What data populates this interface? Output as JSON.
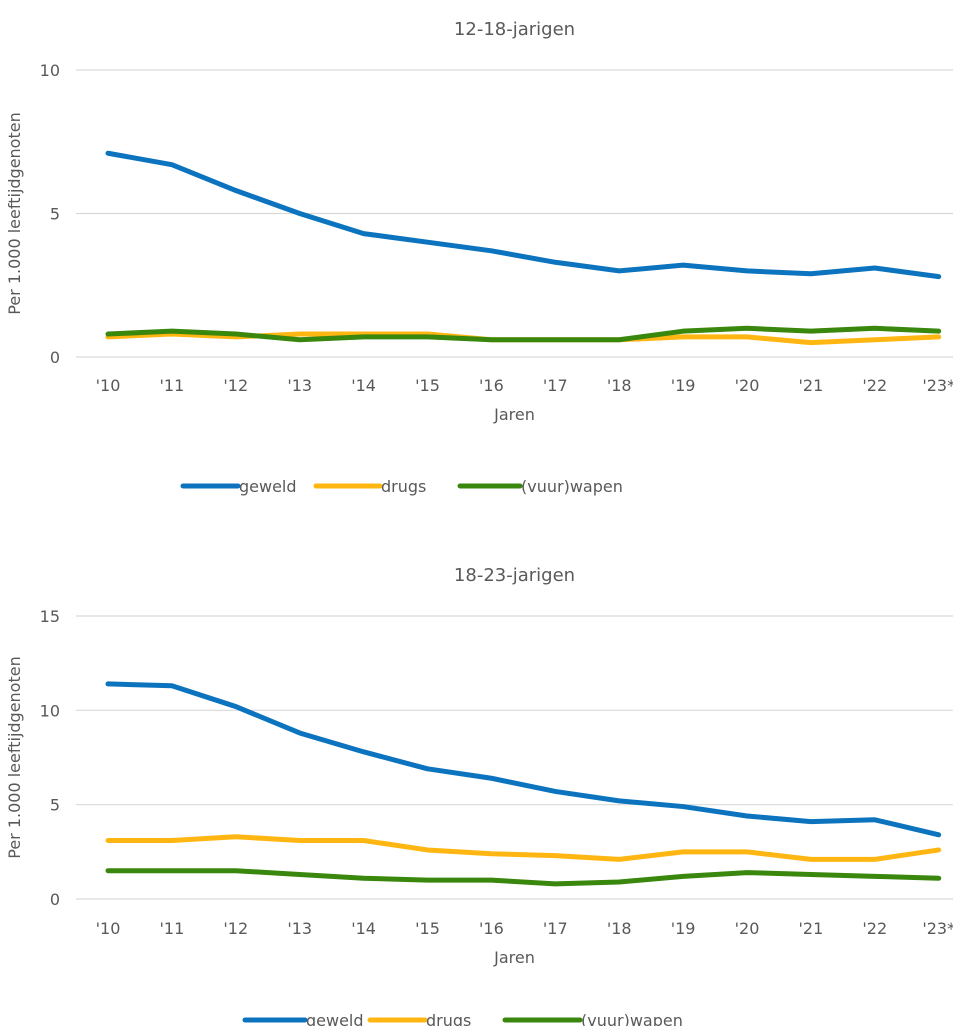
{
  "chart_data": [
    {
      "type": "line",
      "title": "12-18-jarigen",
      "xlabel": "Jaren",
      "ylabel": "Per 1.000 leeftijdgenoten",
      "ylim": [
        0,
        10
      ],
      "yticks": [
        "0",
        "5",
        "10"
      ],
      "categories": [
        "'10",
        "'11",
        "'12",
        "'13",
        "'14",
        "'15",
        "'16",
        "'17",
        "'18",
        "'19",
        "'20",
        "'21",
        "'22",
        "'23*"
      ],
      "grid": true,
      "legend_position": "bottom",
      "series": [
        {
          "name": "geweld",
          "color": "#0c73be",
          "values": [
            7.1,
            6.7,
            5.8,
            5.0,
            4.3,
            4.0,
            3.7,
            3.3,
            3.0,
            3.2,
            3.0,
            2.9,
            3.1,
            2.8
          ]
        },
        {
          "name": "drugs",
          "color": "#ffb612",
          "values": [
            0.7,
            0.8,
            0.7,
            0.8,
            0.8,
            0.8,
            0.6,
            0.6,
            0.6,
            0.7,
            0.7,
            0.5,
            0.6,
            0.7
          ]
        },
        {
          "name": "(vuur)wapen",
          "color": "#39870c",
          "values": [
            0.8,
            0.9,
            0.8,
            0.6,
            0.7,
            0.7,
            0.6,
            0.6,
            0.6,
            0.9,
            1.0,
            0.9,
            1.0,
            0.9
          ]
        }
      ]
    },
    {
      "type": "line",
      "title": "18-23-jarigen",
      "xlabel": "Jaren",
      "ylabel": "Per 1.000 leeftijdgenoten",
      "ylim": [
        0,
        15
      ],
      "yticks": [
        "0",
        "5",
        "10",
        "15"
      ],
      "categories": [
        "'10",
        "'11",
        "'12",
        "'13",
        "'14",
        "'15",
        "'16",
        "'17",
        "'18",
        "'19",
        "'20",
        "'21",
        "'22",
        "'23*"
      ],
      "grid": true,
      "legend_position": "bottom",
      "series": [
        {
          "name": "geweld",
          "color": "#0c73be",
          "values": [
            11.4,
            11.3,
            10.2,
            8.8,
            7.8,
            6.9,
            6.4,
            5.7,
            5.2,
            4.9,
            4.4,
            4.1,
            4.2,
            3.4
          ]
        },
        {
          "name": "drugs",
          "color": "#ffb612",
          "values": [
            3.1,
            3.1,
            3.3,
            3.1,
            3.1,
            2.6,
            2.4,
            2.3,
            2.1,
            2.5,
            2.5,
            2.1,
            2.1,
            2.6
          ]
        },
        {
          "name": "(vuur)wapen",
          "color": "#39870c",
          "values": [
            1.5,
            1.5,
            1.5,
            1.3,
            1.1,
            1.0,
            1.0,
            0.8,
            0.9,
            1.2,
            1.4,
            1.3,
            1.2,
            1.1
          ]
        }
      ]
    }
  ]
}
